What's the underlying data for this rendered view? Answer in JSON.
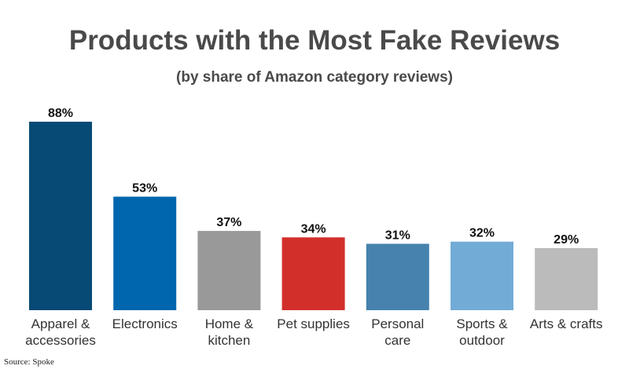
{
  "title": "Products with the Most Fake Reviews",
  "subtitle": "(by share of Amazon category reviews)",
  "source": "Source: Spoke",
  "chart_data": {
    "type": "bar",
    "title": "Products with the Most Fake Reviews",
    "subtitle": "(by share of Amazon category reviews)",
    "categories": [
      [
        "Apparel &",
        "accessories"
      ],
      [
        "Electronics"
      ],
      [
        "Home &",
        "kitchen"
      ],
      [
        "Pet supplies"
      ],
      [
        "Personal",
        "care"
      ],
      [
        "Sports &",
        "outdoor"
      ],
      [
        "Arts & crafts"
      ]
    ],
    "values": [
      88,
      53,
      37,
      34,
      31,
      32,
      29
    ],
    "value_labels": [
      "88%",
      "53%",
      "37%",
      "34%",
      "31%",
      "32%",
      "29%"
    ],
    "colors": [
      "#064a75",
      "#0066ad",
      "#999999",
      "#d32f2a",
      "#4682ad",
      "#72acd6",
      "#bbbbbb"
    ],
    "ylim": [
      0,
      88
    ],
    "grid": false,
    "legend": "none"
  }
}
